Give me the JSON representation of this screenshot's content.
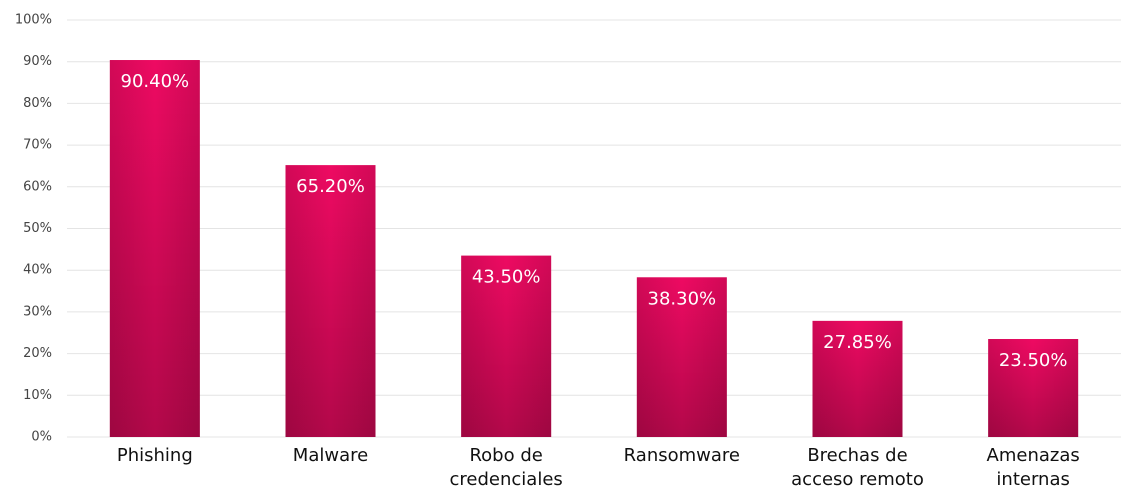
{
  "chart_data": {
    "type": "bar",
    "categories": [
      "Phishing",
      "Malware",
      "Robo de credenciales",
      "Ransomware",
      "Brechas de acceso remoto",
      "Amenazas internas"
    ],
    "values": [
      90.4,
      65.2,
      43.5,
      38.3,
      27.85,
      23.5
    ],
    "value_labels": [
      "90.40%",
      "65.20%",
      "43.50%",
      "38.30%",
      "27.85%",
      "23.50%"
    ],
    "color": "#ee0a62",
    "ylim": [
      0,
      100
    ],
    "yticks": [
      {
        "value": 0,
        "label": "0%"
      },
      {
        "value": 10,
        "label": "10%"
      },
      {
        "value": 20,
        "label": "20%"
      },
      {
        "value": 30,
        "label": "30%"
      },
      {
        "value": 40,
        "label": "40%"
      },
      {
        "value": 50,
        "label": "50%"
      },
      {
        "value": 60,
        "label": "60%"
      },
      {
        "value": 70,
        "label": "70%"
      },
      {
        "value": 80,
        "label": "80%"
      },
      {
        "value": 90,
        "label": "90%"
      },
      {
        "value": 100,
        "label": "100%"
      }
    ],
    "grid": true
  }
}
